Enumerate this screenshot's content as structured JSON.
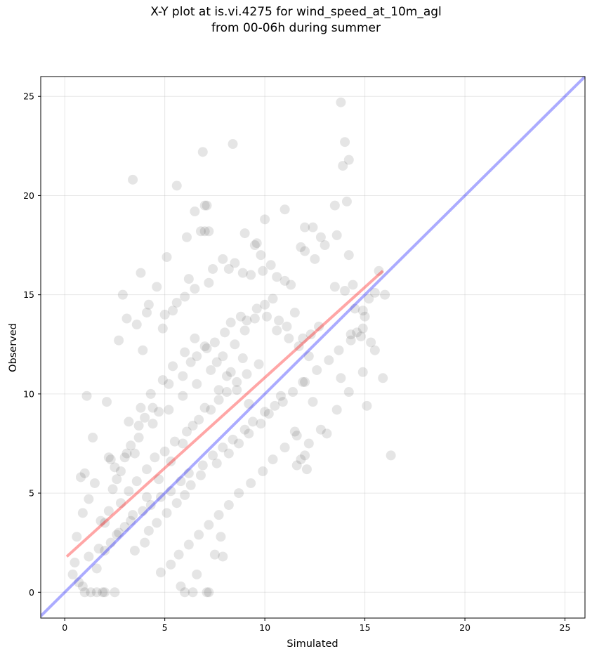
{
  "title_line1": "X-Y plot at is.vi.4275 for wind_speed_at_10m_agl",
  "title_line2": "from 00-06h during summer",
  "chart_data": {
    "type": "scatter",
    "xlabel": "Simulated",
    "ylabel": "Observed",
    "xlim": [
      -1.2,
      26
    ],
    "ylim": [
      -1.3,
      26
    ],
    "xticks": [
      0,
      5,
      10,
      15,
      20,
      25
    ],
    "yticks": [
      0,
      5,
      10,
      15,
      20,
      25
    ],
    "grid": true,
    "point_color": "#000000",
    "point_alpha": 0.1,
    "one_to_one_line": {
      "color": "#0000ff",
      "alpha": 0.33,
      "from": [
        -1.2,
        -1.2
      ],
      "to": [
        26,
        26
      ]
    },
    "fit_line": {
      "color": "#ff0000",
      "alpha": 0.35,
      "from": [
        0.1,
        1.8
      ],
      "to": [
        15.9,
        16.2
      ]
    },
    "series": [
      {
        "x": [
          13.8,
          14.0,
          14.2,
          13.9,
          14.1,
          13.5,
          13.6,
          6.9,
          8.4,
          3.4,
          5.6,
          7.0,
          7.1,
          6.5,
          6.8,
          7.0,
          7.2,
          6.1,
          10.0,
          11.0,
          9.0,
          9.5,
          9.8,
          12.0,
          12.4,
          12.8,
          11.8,
          12.0,
          13.0,
          12.5,
          14.2,
          14.4,
          13.5,
          14.0,
          15.7,
          15.5,
          15.9,
          16.0,
          15.1,
          16.3,
          15.5,
          15.2,
          14.5,
          15.0,
          14.9,
          14.6,
          15.3,
          14.8,
          14.9,
          13.8,
          14.2,
          14.3,
          13.6,
          12.4,
          11.9,
          11.5,
          12.2,
          12.8,
          13.1,
          11.6,
          11.8,
          12.0,
          12.1,
          2.9,
          3.8,
          4.6,
          5.1,
          4.2,
          3.1,
          2.7,
          3.6,
          3.9,
          4.1,
          4.9,
          5.0,
          5.4,
          5.6,
          6.0,
          6.2,
          6.5,
          7.2,
          7.4,
          7.9,
          8.2,
          8.5,
          8.9,
          9.3,
          9.6,
          9.9,
          10.3,
          10.6,
          11.0,
          11.3,
          1.1,
          1.4,
          2.1,
          2.2,
          2.3,
          0.8,
          0.9,
          1.0,
          1.2,
          1.5,
          1.8,
          2.0,
          2.4,
          2.6,
          2.8,
          3.0,
          3.3,
          3.5,
          3.7,
          4.0,
          4.4,
          4.7,
          5.2,
          5.9,
          6.3,
          6.6,
          7.1,
          7.5,
          8.0,
          8.3,
          8.8,
          9.1,
          9.6,
          10.1,
          10.4,
          10.7,
          11.1,
          11.5,
          11.9,
          12.3,
          12.7,
          6.6,
          7.1,
          7.8,
          7.5,
          7.9,
          1.0,
          1.3,
          1.6,
          1.9,
          2.0,
          2.5,
          0.6,
          0.5,
          0.4,
          0.7,
          0.9,
          5.8,
          6.0,
          6.4,
          7.2,
          1.2,
          1.7,
          2.3,
          2.6,
          3.0,
          3.3,
          3.9,
          4.3,
          4.8,
          5.3,
          5.8,
          6.2,
          6.9,
          7.4,
          7.9,
          8.4,
          9.0,
          9.4,
          10.0,
          10.5,
          10.8,
          2.2,
          2.8,
          3.2,
          3.6,
          4.1,
          4.5,
          5.0,
          5.5,
          6.1,
          6.7,
          7.3,
          7.7,
          8.1,
          8.6,
          9.1,
          9.7,
          3.5,
          4.0,
          4.2,
          4.6,
          5.1,
          5.6,
          6.0,
          6.3,
          6.8,
          7.6,
          8.2,
          8.7,
          9.2,
          9.8,
          10.2,
          10.9,
          11.4,
          12.0,
          12.6,
          13.2,
          13.7,
          14.3,
          14.9,
          2.5,
          3.1,
          3.7,
          4.4,
          5.2,
          5.9,
          6.6,
          7.3,
          7.9,
          8.5,
          9.0,
          9.5,
          10.0,
          10.6,
          11.2,
          11.7,
          12.2,
          4.8,
          5.3,
          5.7,
          6.2,
          6.7,
          7.2,
          7.7,
          8.2,
          8.7,
          9.3,
          9.9,
          10.4,
          11.0,
          11.6,
          3.2,
          3.8,
          4.3,
          4.9,
          5.4,
          6.0,
          6.5,
          7.0,
          7.6,
          8.1,
          8.6,
          9.2,
          1.6,
          2.0,
          2.7,
          3.4,
          4.1,
          4.7,
          5.3,
          5.9,
          6.4,
          7.0,
          7.7,
          8.3,
          8.9
        ],
        "y": [
          24.7,
          22.7,
          21.8,
          21.5,
          19.7,
          19.5,
          18.0,
          22.2,
          22.6,
          20.8,
          20.5,
          19.5,
          19.5,
          19.2,
          18.2,
          18.2,
          18.2,
          17.9,
          18.8,
          19.3,
          18.1,
          17.5,
          17.0,
          18.4,
          18.4,
          17.9,
          17.4,
          17.2,
          17.5,
          16.8,
          17.0,
          15.5,
          15.4,
          15.2,
          16.2,
          12.2,
          10.8,
          15.0,
          9.4,
          6.9,
          15.1,
          14.8,
          14.3,
          13.9,
          14.2,
          13.1,
          12.6,
          12.9,
          11.1,
          10.8,
          10.1,
          13.0,
          9.2,
          9.6,
          10.6,
          8.1,
          7.5,
          8.2,
          8.0,
          6.4,
          6.7,
          6.9,
          6.2,
          15.0,
          16.1,
          15.4,
          16.9,
          14.5,
          13.8,
          12.7,
          13.5,
          12.2,
          14.1,
          13.3,
          14.0,
          14.2,
          14.6,
          14.9,
          15.8,
          15.3,
          15.6,
          16.3,
          16.8,
          16.3,
          16.6,
          16.1,
          16.0,
          17.6,
          16.2,
          16.5,
          15.9,
          15.7,
          15.5,
          9.9,
          7.8,
          9.6,
          6.8,
          6.7,
          5.8,
          4.0,
          6.0,
          4.7,
          5.5,
          3.6,
          3.5,
          5.2,
          5.7,
          6.1,
          6.8,
          7.4,
          7.0,
          8.4,
          8.8,
          9.3,
          9.1,
          10.5,
          10.9,
          11.6,
          11.9,
          12.3,
          12.6,
          13.1,
          13.6,
          13.9,
          13.7,
          14.3,
          13.9,
          14.8,
          13.7,
          13.4,
          14.1,
          12.8,
          13.0,
          13.4,
          0.9,
          0.0,
          2.8,
          1.9,
          1.8,
          0.0,
          0.0,
          0.0,
          0.0,
          0.0,
          0.0,
          2.8,
          1.5,
          0.9,
          0.5,
          0.3,
          0.3,
          0.0,
          0.0,
          0.0,
          1.8,
          2.2,
          2.5,
          2.9,
          3.3,
          3.6,
          4.1,
          4.4,
          4.8,
          5.1,
          5.6,
          6.0,
          6.4,
          6.9,
          7.3,
          7.7,
          8.2,
          8.6,
          9.1,
          9.4,
          9.9,
          4.1,
          4.5,
          5.1,
          5.6,
          6.2,
          6.8,
          7.1,
          7.6,
          8.1,
          8.7,
          9.2,
          9.7,
          10.1,
          10.6,
          11.0,
          11.5,
          2.1,
          2.5,
          3.1,
          3.5,
          4.0,
          4.5,
          4.9,
          5.4,
          5.9,
          6.5,
          7.0,
          7.5,
          8.0,
          8.5,
          9.0,
          9.6,
          10.1,
          10.6,
          11.2,
          11.7,
          12.2,
          12.7,
          13.3,
          6.3,
          7.0,
          7.8,
          8.5,
          9.2,
          9.9,
          10.5,
          11.2,
          11.9,
          12.5,
          13.2,
          13.8,
          14.5,
          13.2,
          12.8,
          12.4,
          11.9,
          1.0,
          1.4,
          1.9,
          2.4,
          2.9,
          3.4,
          3.9,
          4.4,
          5.0,
          5.5,
          6.1,
          6.7,
          7.3,
          7.9,
          8.6,
          9.3,
          10.0,
          10.7,
          11.4,
          12.1,
          12.8,
          12.4,
          11.6,
          10.9,
          10.2,
          9.5,
          1.2,
          2.1,
          3.0,
          3.9,
          4.8,
          5.7,
          6.6,
          7.5,
          8.4,
          9.3,
          10.2,
          11.1,
          11.8
        ]
      }
    ]
  }
}
